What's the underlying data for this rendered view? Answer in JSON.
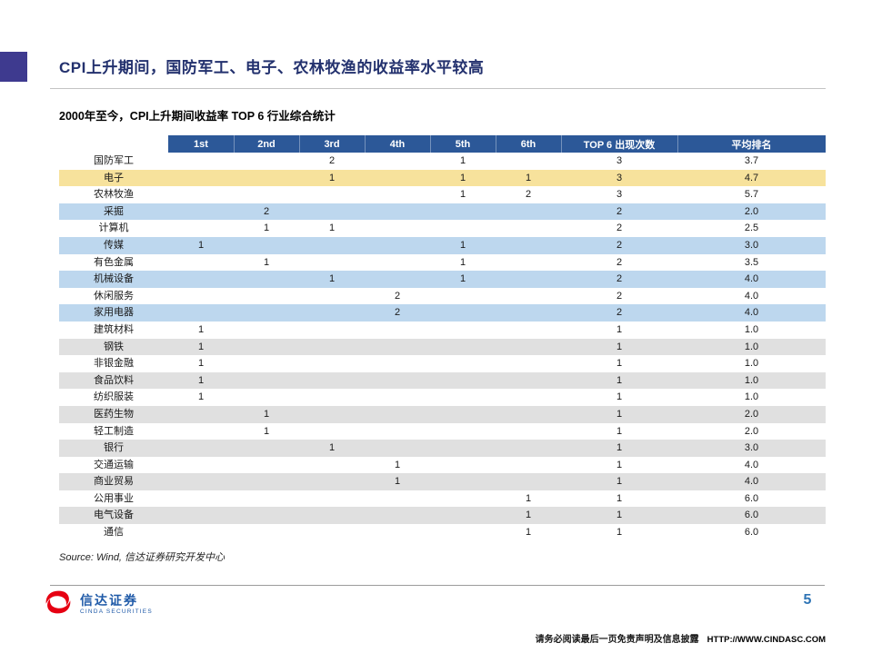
{
  "page": {
    "title": "CPI上升期间，国防军工、电子、农林牧渔的收益率水平较高",
    "page_number": "5"
  },
  "table": {
    "caption": "2000年至今，CPI上升期间收益率 TOP 6 行业综合统计",
    "columns": [
      "",
      "1st",
      "2nd",
      "3rd",
      "4th",
      "5th",
      "6th",
      "TOP 6 出现次数",
      "平均排名"
    ],
    "rows": [
      {
        "name": "国防军工",
        "ranks": [
          "",
          "",
          "2",
          "",
          "1",
          ""
        ],
        "count": "3",
        "avg": "3.7",
        "highlight": "none"
      },
      {
        "name": "电子",
        "ranks": [
          "",
          "",
          "1",
          "",
          "1",
          "1"
        ],
        "count": "3",
        "avg": "4.7",
        "highlight": "yellow"
      },
      {
        "name": "农林牧渔",
        "ranks": [
          "",
          "",
          "",
          "",
          "1",
          "2"
        ],
        "count": "3",
        "avg": "5.7",
        "highlight": "none"
      },
      {
        "name": "采掘",
        "ranks": [
          "",
          "2",
          "",
          "",
          "",
          ""
        ],
        "count": "2",
        "avg": "2.0",
        "highlight": "blue"
      },
      {
        "name": "计算机",
        "ranks": [
          "",
          "1",
          "1",
          "",
          "",
          ""
        ],
        "count": "2",
        "avg": "2.5",
        "highlight": "none"
      },
      {
        "name": "传媒",
        "ranks": [
          "1",
          "",
          "",
          "",
          "1",
          ""
        ],
        "count": "2",
        "avg": "3.0",
        "highlight": "blue"
      },
      {
        "name": "有色金属",
        "ranks": [
          "",
          "1",
          "",
          "",
          "1",
          ""
        ],
        "count": "2",
        "avg": "3.5",
        "highlight": "none"
      },
      {
        "name": "机械设备",
        "ranks": [
          "",
          "",
          "1",
          "",
          "1",
          ""
        ],
        "count": "2",
        "avg": "4.0",
        "highlight": "blue"
      },
      {
        "name": "休闲服务",
        "ranks": [
          "",
          "",
          "",
          "2",
          "",
          ""
        ],
        "count": "2",
        "avg": "4.0",
        "highlight": "none"
      },
      {
        "name": "家用电器",
        "ranks": [
          "",
          "",
          "",
          "2",
          "",
          ""
        ],
        "count": "2",
        "avg": "4.0",
        "highlight": "blue"
      },
      {
        "name": "建筑材料",
        "ranks": [
          "1",
          "",
          "",
          "",
          "",
          ""
        ],
        "count": "1",
        "avg": "1.0",
        "highlight": "none"
      },
      {
        "name": "钢铁",
        "ranks": [
          "1",
          "",
          "",
          "",
          "",
          ""
        ],
        "count": "1",
        "avg": "1.0",
        "highlight": "gray"
      },
      {
        "name": "非银金融",
        "ranks": [
          "1",
          "",
          "",
          "",
          "",
          ""
        ],
        "count": "1",
        "avg": "1.0",
        "highlight": "none"
      },
      {
        "name": "食品饮料",
        "ranks": [
          "1",
          "",
          "",
          "",
          "",
          ""
        ],
        "count": "1",
        "avg": "1.0",
        "highlight": "gray"
      },
      {
        "name": "纺织服装",
        "ranks": [
          "1",
          "",
          "",
          "",
          "",
          ""
        ],
        "count": "1",
        "avg": "1.0",
        "highlight": "none"
      },
      {
        "name": "医药生物",
        "ranks": [
          "",
          "1",
          "",
          "",
          "",
          ""
        ],
        "count": "1",
        "avg": "2.0",
        "highlight": "gray"
      },
      {
        "name": "轻工制造",
        "ranks": [
          "",
          "1",
          "",
          "",
          "",
          ""
        ],
        "count": "1",
        "avg": "2.0",
        "highlight": "none"
      },
      {
        "name": "银行",
        "ranks": [
          "",
          "",
          "1",
          "",
          "",
          ""
        ],
        "count": "1",
        "avg": "3.0",
        "highlight": "gray"
      },
      {
        "name": "交通运输",
        "ranks": [
          "",
          "",
          "",
          "1",
          "",
          ""
        ],
        "count": "1",
        "avg": "4.0",
        "highlight": "none"
      },
      {
        "name": "商业贸易",
        "ranks": [
          "",
          "",
          "",
          "1",
          "",
          ""
        ],
        "count": "1",
        "avg": "4.0",
        "highlight": "gray"
      },
      {
        "name": "公用事业",
        "ranks": [
          "",
          "",
          "",
          "",
          "",
          "1"
        ],
        "count": "1",
        "avg": "6.0",
        "highlight": "none"
      },
      {
        "name": "电气设备",
        "ranks": [
          "",
          "",
          "",
          "",
          "",
          "1"
        ],
        "count": "1",
        "avg": "6.0",
        "highlight": "gray"
      },
      {
        "name": "通信",
        "ranks": [
          "",
          "",
          "",
          "",
          "",
          "1"
        ],
        "count": "1",
        "avg": "6.0",
        "highlight": "none"
      }
    ]
  },
  "footer": {
    "source": "Source: Wind, 信达证券研究开发中心",
    "logo_text": "信达证券",
    "logo_subtext": "CINDA SECURITIES",
    "disclaimer": "请务必阅读最后一页免责声明及信息披露",
    "website": "HTTP://WWW.CINDASC.COM"
  },
  "colors": {
    "accent_square": "#3E3A8F",
    "title_color": "#23316E",
    "header_bg": "#2C5898",
    "row_yellow": "#F7E29C",
    "row_blue": "#BDD7EE",
    "row_gray": "#E0E0E0",
    "page_number_color": "#2E74B5",
    "logo_red": "#E60012",
    "logo_blue": "#1F5AA8"
  }
}
